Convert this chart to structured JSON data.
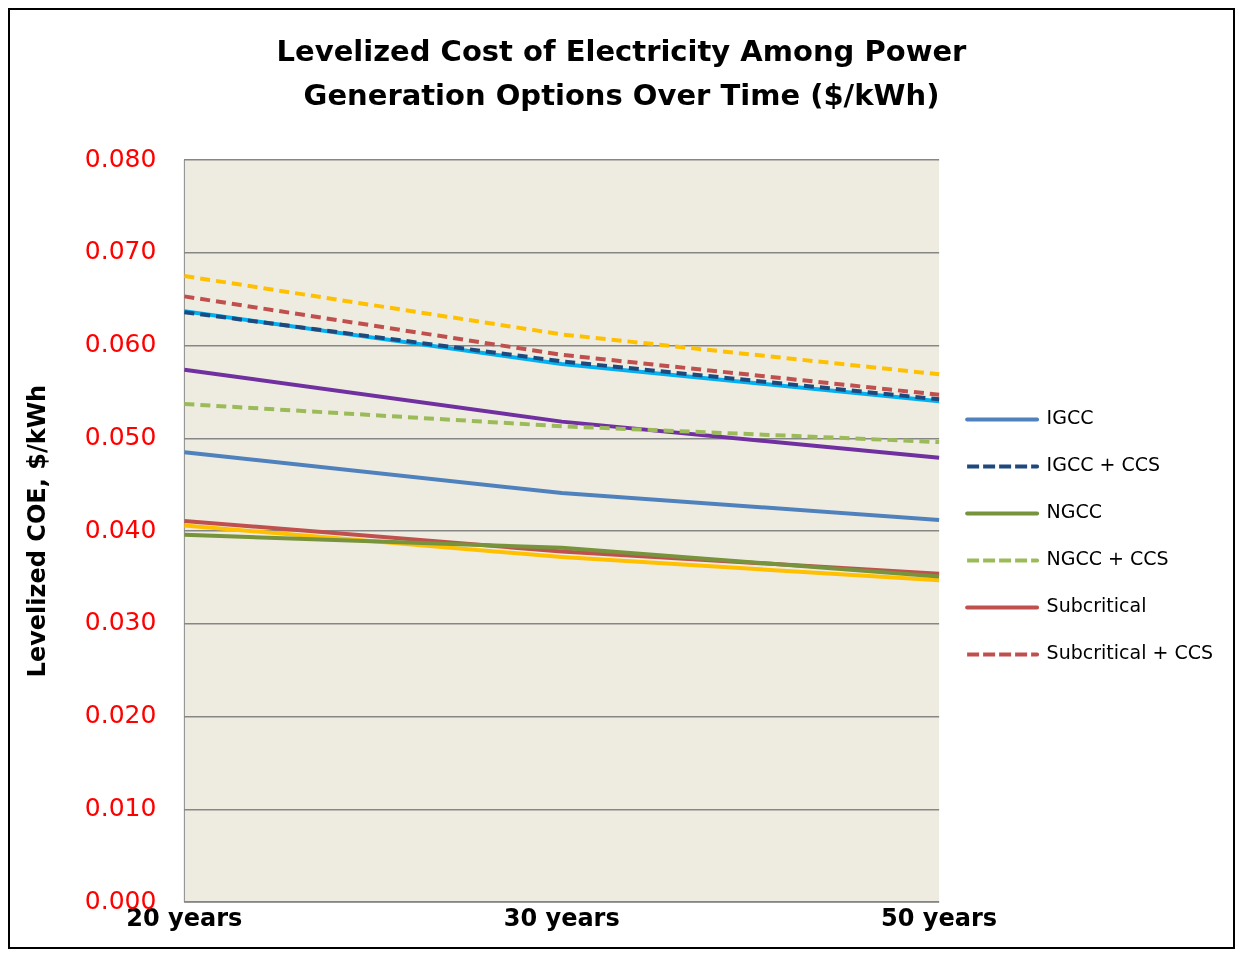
{
  "chart_data": {
    "type": "line",
    "title": "Levelized Cost of Electricity Among Power Generation Options Over Time ($/kWh)",
    "ylabel": "Levelized COE, $/kWh",
    "categories": [
      "20 years",
      "30 years",
      "50 years"
    ],
    "ylim": [
      0,
      0.08
    ],
    "yticks": [
      {
        "value": 0,
        "label": "0.000"
      },
      {
        "value": 0.01,
        "label": "0.010"
      },
      {
        "value": 0.02,
        "label": "0.020"
      },
      {
        "value": 0.03,
        "label": "0.030"
      },
      {
        "value": 0.04,
        "label": "0.040"
      },
      {
        "value": 0.05,
        "label": "0.050"
      },
      {
        "value": 0.06,
        "label": "0.060"
      },
      {
        "value": 0.07,
        "label": "0.070"
      },
      {
        "value": 0.08,
        "label": "0.080"
      }
    ],
    "grid": "y",
    "legend": "right",
    "marker": "none",
    "series": [
      {
        "name": "IGCC",
        "color": "#4f81bd",
        "line_style": "solid",
        "values": [
          0.0485,
          0.0441,
          0.0412
        ]
      },
      {
        "name": "IGCC + CCS",
        "color": "#1f497d",
        "line_style": "dashed",
        "values": [
          0.0636,
          0.0583,
          0.0542
        ]
      },
      {
        "name": "NGCC",
        "color": "#77933c",
        "line_style": "solid",
        "values": [
          0.0396,
          0.0382,
          0.0351
        ]
      },
      {
        "name": "NGCC + CCS",
        "color": "#9bbb59",
        "line_style": "dashed",
        "values": [
          0.0537,
          0.0513,
          0.0496
        ]
      },
      {
        "name": "Subcritical",
        "color": "#c0504d",
        "line_style": "solid",
        "values": [
          0.0411,
          0.0378,
          0.0354
        ]
      },
      {
        "name": "Subcritical + CCS",
        "color": "#c0504d",
        "line_style": "dashed",
        "values": [
          0.0653,
          0.059,
          0.0547
        ]
      },
      {
        "color": "#00b0f0",
        "line_style": "solid",
        "values": [
          0.0637,
          0.058,
          0.054
        ]
      },
      {
        "color": "#7030a0",
        "line_style": "solid",
        "values": [
          0.0574,
          0.0518,
          0.0479
        ]
      },
      {
        "color": "#ffc000",
        "line_style": "solid",
        "values": [
          0.0406,
          0.0372,
          0.0347
        ]
      },
      {
        "color": "#ffc000",
        "line_style": "dashed",
        "values": [
          0.0675,
          0.0612,
          0.0569
        ]
      }
    ]
  }
}
